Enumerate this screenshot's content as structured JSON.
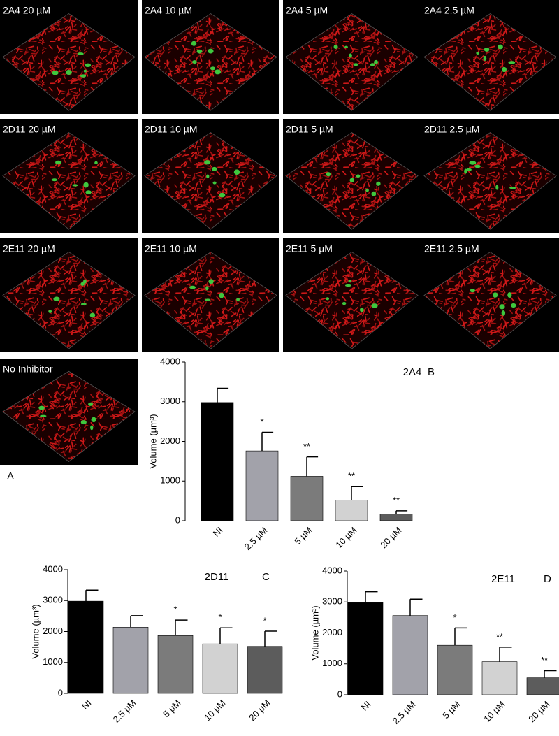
{
  "images": [
    {
      "label": "2A4 20 µM"
    },
    {
      "label": "2A4 10 µM"
    },
    {
      "label": "2A4 5 µM"
    },
    {
      "label": "2A4 2.5 µM"
    },
    {
      "label": "2D11 20 µM"
    },
    {
      "label": "2D11 10 µM"
    },
    {
      "label": "2D11 5 µM"
    },
    {
      "label": "2D11 2.5 µM"
    },
    {
      "label": "2E11 20 µM"
    },
    {
      "label": "2E11 10 µM"
    },
    {
      "label": "2E11 5 µM"
    },
    {
      "label": "2E11 2.5 µM"
    },
    {
      "label": "No Inhibitor"
    }
  ],
  "panel_label": "A",
  "chart_data": [
    {
      "type": "bar",
      "title": "2A4",
      "panel": "B",
      "y_label": "Volume (µm³)",
      "categories": [
        "NI",
        "2.5 µM",
        "5 µM",
        "10 µM",
        "20 µM"
      ],
      "values": [
        2980,
        1760,
        1120,
        520,
        170
      ],
      "errors": [
        360,
        470,
        490,
        340,
        80
      ],
      "significance": [
        null,
        "*",
        "**",
        "**",
        "**"
      ],
      "colors": [
        "#000000",
        "#a2a2aa",
        "#7b7b7b",
        "#d2d2d2",
        "#5c5c5c"
      ],
      "ylim": [
        0,
        4000
      ],
      "yticks": [
        0,
        1000,
        2000,
        3000,
        4000
      ]
    },
    {
      "type": "bar",
      "title": "2D11",
      "panel": "C",
      "y_label": "Volume (µm³)",
      "categories": [
        "NI",
        "2.5 µM",
        "5 µM",
        "10 µM",
        "20 µM"
      ],
      "values": [
        2980,
        2140,
        1870,
        1600,
        1520
      ],
      "errors": [
        360,
        370,
        500,
        520,
        490
      ],
      "significance": [
        null,
        null,
        "*",
        "*",
        "*"
      ],
      "colors": [
        "#000000",
        "#a2a2aa",
        "#7b7b7b",
        "#d2d2d2",
        "#5c5c5c"
      ],
      "ylim": [
        0,
        4000
      ],
      "yticks": [
        0,
        1000,
        2000,
        3000,
        4000
      ]
    },
    {
      "type": "bar",
      "title": "2E11",
      "panel": "D",
      "y_label": "Volume (µm³)",
      "categories": [
        "NI",
        "2.5 µM",
        "5 µM",
        "10 µM",
        "20 µM"
      ],
      "values": [
        2980,
        2560,
        1600,
        1070,
        550
      ],
      "errors": [
        350,
        530,
        560,
        470,
        230
      ],
      "significance": [
        null,
        null,
        "*",
        "**",
        "**"
      ],
      "colors": [
        "#000000",
        "#a2a2aa",
        "#7b7b7b",
        "#d2d2d2",
        "#5c5c5c"
      ],
      "ylim": [
        0,
        4000
      ],
      "yticks": [
        0,
        1000,
        2000,
        3000,
        4000
      ]
    }
  ]
}
